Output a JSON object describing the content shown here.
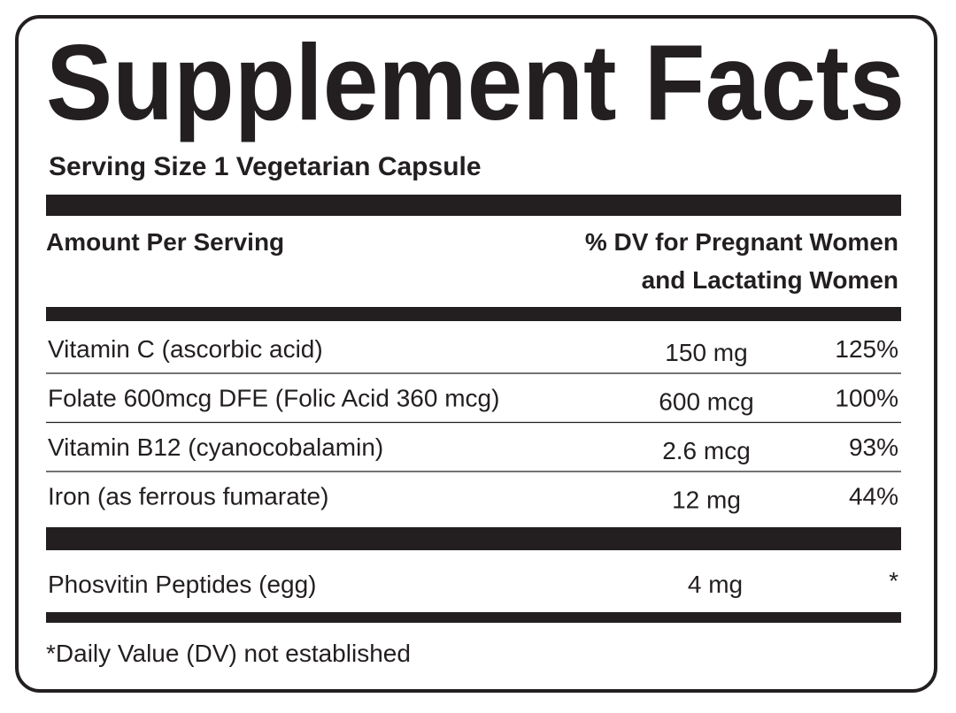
{
  "title": "Supplement Facts",
  "serving_size": "Serving Size 1 Vegetarian Capsule",
  "header": {
    "amount": "Amount Per Serving",
    "dv": [
      "% DV for Pregnant Women",
      "and Lactating Women"
    ]
  },
  "rows": [
    {
      "name": "Vitamin C (ascorbic acid)",
      "amount": "150 mg",
      "dv": "125%"
    },
    {
      "name": "Folate 600mcg DFE (Folic Acid 360 mcg)",
      "amount": "600 mcg",
      "dv": "100%"
    },
    {
      "name": "Vitamin B12 (cyanocobalamin)",
      "amount": "2.6 mcg",
      "dv": "93%"
    },
    {
      "name": "Iron (as ferrous fumarate)",
      "amount": "12 mg",
      "dv": "44%"
    }
  ],
  "other_rows": [
    {
      "name": "Phosvitin Peptides (egg)",
      "amount": "4 mg",
      "dv": "*"
    }
  ],
  "footnote": "*Daily Value (DV) not established"
}
